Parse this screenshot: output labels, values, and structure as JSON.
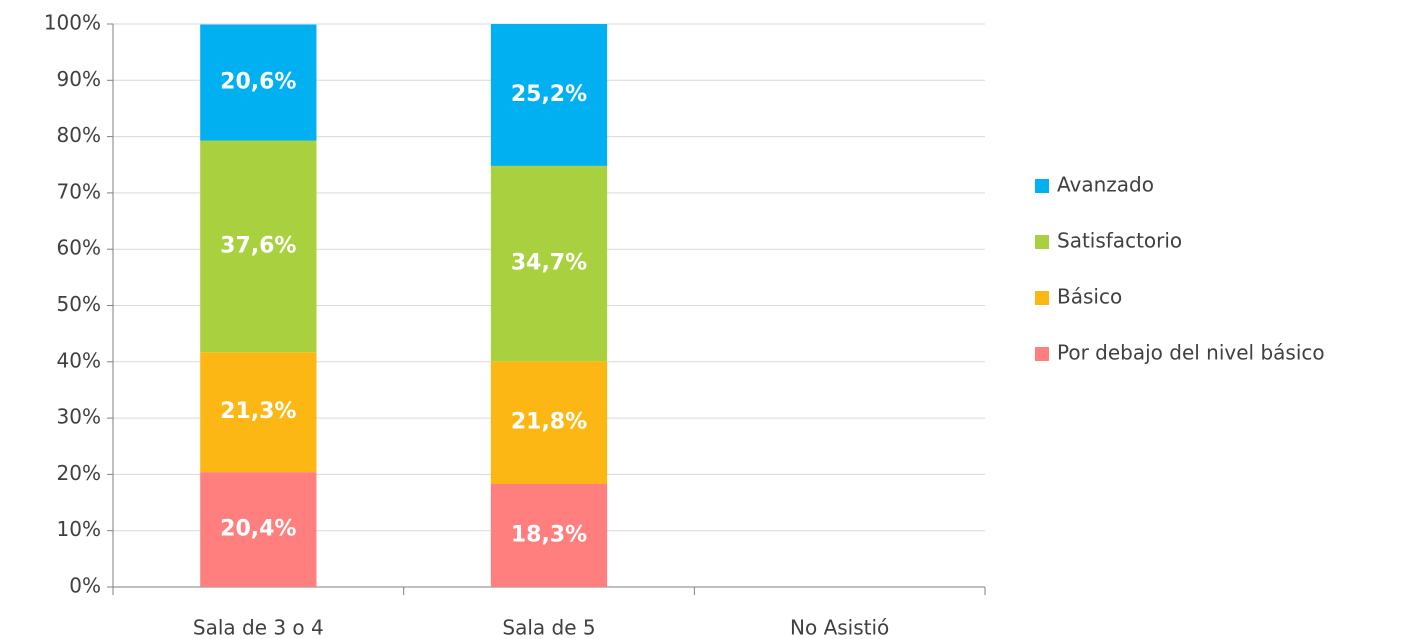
{
  "chart_data": {
    "type": "stacked_bar",
    "categories": [
      "Sala de 3 o 4",
      "Sala de 5",
      "No Asistió"
    ],
    "series": [
      {
        "name": "Avanzado",
        "color": "#00b0f0",
        "values": [
          20.6,
          25.2,
          null
        ],
        "value_labels": [
          "20,6%",
          "25,2%",
          null
        ]
      },
      {
        "name": "Satisfactorio",
        "color": "#a9d03f",
        "values": [
          37.6,
          34.7,
          null
        ],
        "value_labels": [
          "37,6%",
          "34,7%",
          null
        ]
      },
      {
        "name": "Básico",
        "color": "#fdb714",
        "values": [
          21.3,
          21.8,
          null
        ],
        "value_labels": [
          "21,3%",
          "21,8%",
          null
        ]
      },
      {
        "name": "Por debajo del nivel básico",
        "color": "#ff7f7f",
        "values": [
          20.4,
          18.3,
          null
        ],
        "value_labels": [
          "20,4%",
          "18,3%",
          null
        ]
      }
    ],
    "ylim": [
      0,
      100
    ],
    "yticks": [
      {
        "value": 0,
        "label": "0%"
      },
      {
        "value": 10,
        "label": "10%"
      },
      {
        "value": 20,
        "label": "20%"
      },
      {
        "value": 30,
        "label": "30%"
      },
      {
        "value": 40,
        "label": "40%"
      },
      {
        "value": 50,
        "label": "50%"
      },
      {
        "value": 60,
        "label": "60%"
      },
      {
        "value": 70,
        "label": "70%"
      },
      {
        "value": 80,
        "label": "80%"
      },
      {
        "value": 90,
        "label": "90%"
      },
      {
        "value": 100,
        "label": "100%"
      }
    ],
    "grid": true,
    "legend": "right"
  }
}
